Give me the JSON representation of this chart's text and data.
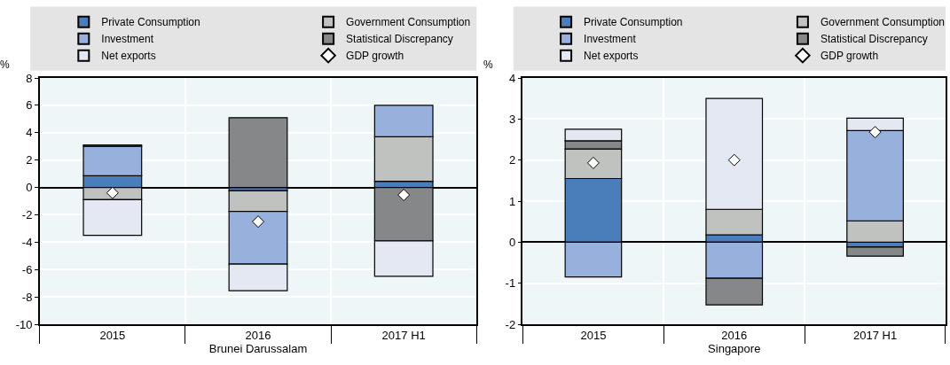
{
  "chart_data": [
    {
      "type": "bar",
      "stacked": true,
      "xlabel": "Brunei Darussalam",
      "ylabel": "%",
      "categories": [
        "2015",
        "2016",
        "2017 H1"
      ],
      "ylim": [
        -10,
        8
      ],
      "yticks": [
        -10,
        -8,
        -6,
        -4,
        -2,
        0,
        2,
        4,
        6,
        8
      ],
      "grid": true,
      "legend": "top",
      "marker": "diamond",
      "series": [
        {
          "name": "Private Consumption",
          "color": "#4a7ebb",
          "values": [
            0.85,
            -0.25,
            0.45
          ]
        },
        {
          "name": "Government Consumption",
          "color": "#c0c2c0",
          "values": [
            -0.9,
            -1.5,
            3.25
          ]
        },
        {
          "name": "Investment",
          "color": "#98b0dc",
          "values": [
            2.15,
            -3.85,
            2.3
          ]
        },
        {
          "name": "Statistical Discrepancy",
          "color": "#858789",
          "values": [
            0.1,
            5.1,
            -3.9
          ]
        },
        {
          "name": "Net exports",
          "color": "#e4e8f2",
          "values": [
            -2.6,
            -1.95,
            -2.6
          ]
        },
        {
          "name": "GDP growth",
          "type": "scatter",
          "color": "#ffffff",
          "values": [
            -0.4,
            -2.5,
            -0.55
          ]
        }
      ]
    },
    {
      "type": "bar",
      "stacked": true,
      "xlabel": "Singapore",
      "ylabel": "%",
      "categories": [
        "2015",
        "2016",
        "2017 H1"
      ],
      "ylim": [
        -2,
        4
      ],
      "yticks": [
        -2,
        -1,
        0,
        1,
        2,
        3,
        4
      ],
      "grid": true,
      "legend": "top",
      "marker": "diamond",
      "series": [
        {
          "name": "Private Consumption",
          "color": "#4a7ebb",
          "values": [
            1.55,
            0.18,
            -0.12
          ]
        },
        {
          "name": "Government Consumption",
          "color": "#c0c2c0",
          "values": [
            0.72,
            0.62,
            0.52
          ]
        },
        {
          "name": "Investment",
          "color": "#98b0dc",
          "values": [
            -0.85,
            -0.88,
            2.2
          ]
        },
        {
          "name": "Statistical Discrepancy",
          "color": "#858789",
          "values": [
            0.2,
            -0.65,
            -0.22
          ]
        },
        {
          "name": "Net exports",
          "color": "#e4e8f2",
          "values": [
            0.28,
            2.7,
            0.3
          ]
        },
        {
          "name": "GDP growth",
          "type": "scatter",
          "color": "#ffffff",
          "values": [
            1.93,
            2.0,
            2.68
          ]
        }
      ]
    }
  ]
}
